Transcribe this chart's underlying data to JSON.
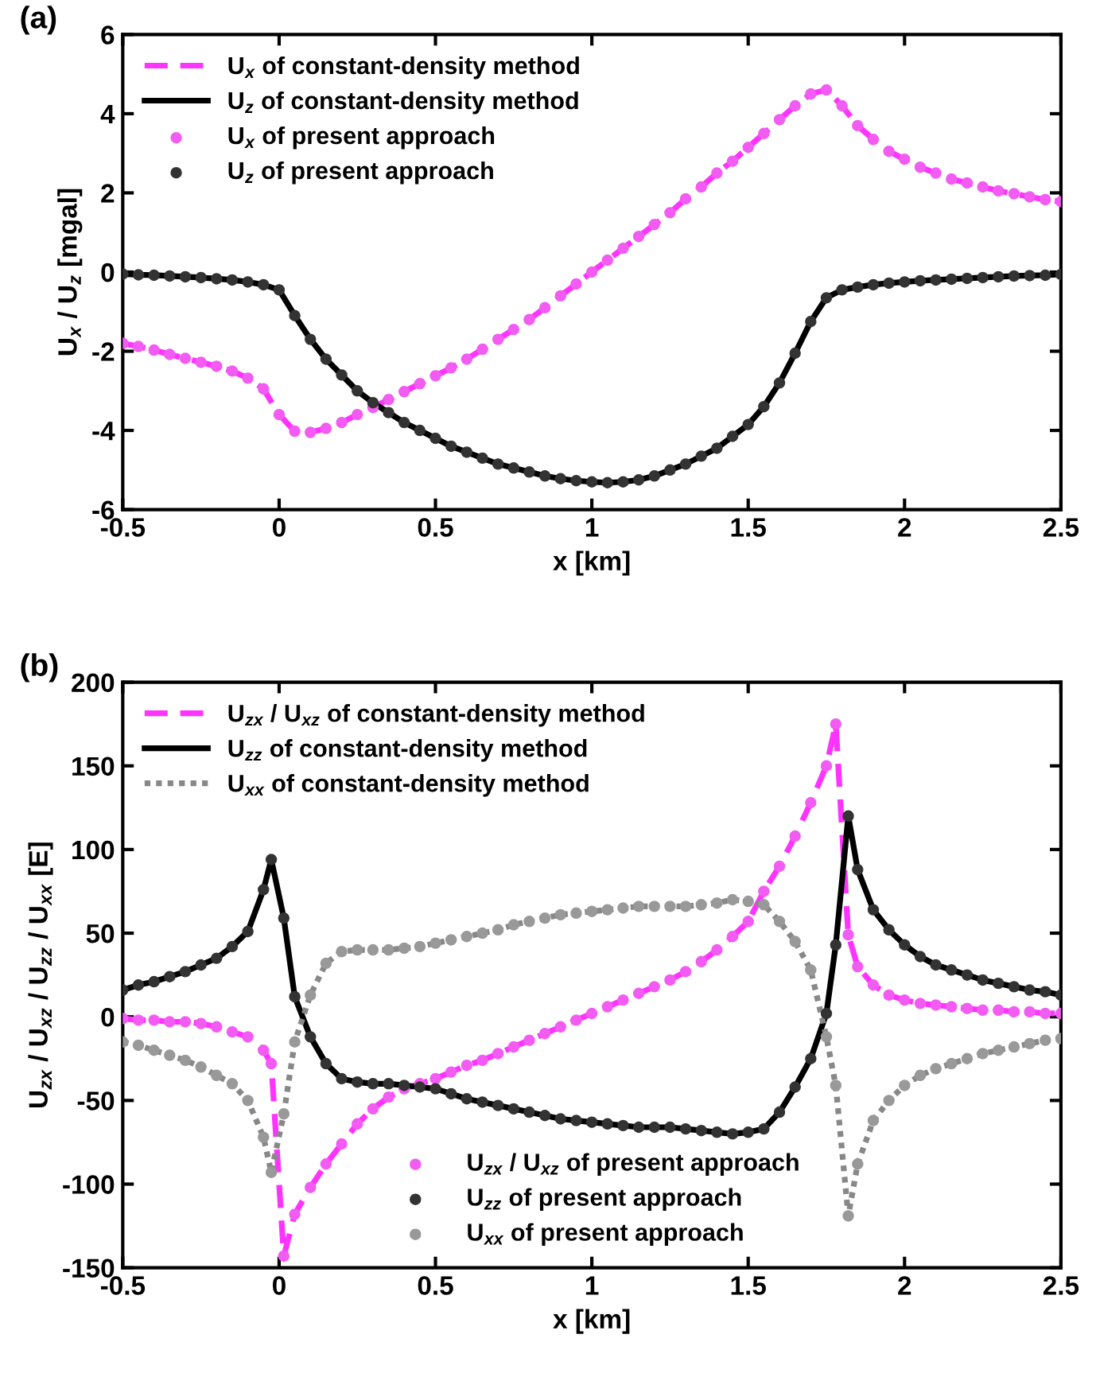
{
  "chart_data": [
    {
      "type": "line",
      "title": "(a)",
      "xlabel": "x [km]",
      "ylabel": "U$_{x}$ / U$_{z}$ [mgal]",
      "x": [
        -0.5,
        -0.45,
        -0.4,
        -0.35,
        -0.3,
        -0.25,
        -0.2,
        -0.15,
        -0.1,
        -0.05,
        0,
        0.05,
        0.1,
        0.15,
        0.2,
        0.25,
        0.3,
        0.35,
        0.4,
        0.45,
        0.5,
        0.55,
        0.6,
        0.65,
        0.7,
        0.75,
        0.8,
        0.85,
        0.9,
        0.95,
        1.0,
        1.05,
        1.1,
        1.15,
        1.2,
        1.25,
        1.3,
        1.35,
        1.4,
        1.45,
        1.5,
        1.55,
        1.6,
        1.65,
        1.7,
        1.75,
        1.8,
        1.85,
        1.9,
        1.95,
        2.0,
        2.05,
        2.1,
        2.15,
        2.2,
        2.25,
        2.3,
        2.35,
        2.4,
        2.45,
        2.5
      ],
      "xlim": [
        -0.5,
        2.5
      ],
      "xticks": [
        -0.5,
        0,
        0.5,
        1,
        1.5,
        2,
        2.5
      ],
      "ylim": [
        -6,
        6
      ],
      "yticks": [
        -6,
        -4,
        -2,
        0,
        2,
        4,
        6
      ],
      "legend": "top left",
      "series": [
        {
          "name": "U$_{x}$ of constant-density method",
          "type": "line",
          "line_style": "dashed",
          "color": "#ff33ff",
          "values": [
            -1.8,
            -1.88,
            -1.97,
            -2.08,
            -2.18,
            -2.28,
            -2.38,
            -2.5,
            -2.68,
            -2.95,
            -3.6,
            -4.02,
            -4.05,
            -3.95,
            -3.8,
            -3.6,
            -3.42,
            -3.22,
            -3.02,
            -2.82,
            -2.62,
            -2.42,
            -2.2,
            -1.95,
            -1.7,
            -1.45,
            -1.2,
            -0.9,
            -0.6,
            -0.3,
            0.0,
            0.3,
            0.6,
            0.9,
            1.2,
            1.5,
            1.85,
            2.15,
            2.5,
            2.8,
            3.15,
            3.5,
            3.85,
            4.2,
            4.5,
            4.6,
            4.2,
            3.7,
            3.35,
            3.05,
            2.85,
            2.65,
            2.5,
            2.35,
            2.25,
            2.15,
            2.05,
            1.98,
            1.9,
            1.83,
            1.78
          ]
        },
        {
          "name": "U$_{z}$ of constant-density method",
          "type": "line",
          "line_style": "solid",
          "color": "#000000",
          "values": [
            -0.05,
            -0.07,
            -0.08,
            -0.1,
            -0.12,
            -0.14,
            -0.17,
            -0.2,
            -0.25,
            -0.32,
            -0.45,
            -1.1,
            -1.7,
            -2.2,
            -2.6,
            -3.0,
            -3.3,
            -3.55,
            -3.8,
            -4.0,
            -4.2,
            -4.4,
            -4.55,
            -4.7,
            -4.85,
            -4.95,
            -5.05,
            -5.15,
            -5.22,
            -5.27,
            -5.3,
            -5.32,
            -5.3,
            -5.25,
            -5.15,
            -5.0,
            -4.85,
            -4.65,
            -4.45,
            -4.15,
            -3.85,
            -3.4,
            -2.8,
            -2.05,
            -1.25,
            -0.65,
            -0.45,
            -0.38,
            -0.32,
            -0.28,
            -0.25,
            -0.22,
            -0.2,
            -0.18,
            -0.16,
            -0.14,
            -0.12,
            -0.1,
            -0.09,
            -0.08,
            -0.06
          ]
        },
        {
          "name": "U$_{x}$ of present approach",
          "type": "scatter",
          "marker": "circle",
          "color": "#f25cf2",
          "values": [
            -1.8,
            -1.88,
            -1.97,
            -2.08,
            -2.18,
            -2.28,
            -2.38,
            -2.5,
            -2.68,
            -2.95,
            -3.6,
            -4.02,
            -4.05,
            -3.95,
            -3.8,
            -3.6,
            -3.42,
            -3.22,
            -3.02,
            -2.82,
            -2.62,
            -2.42,
            -2.2,
            -1.95,
            -1.7,
            -1.45,
            -1.2,
            -0.9,
            -0.6,
            -0.3,
            0.0,
            0.3,
            0.6,
            0.9,
            1.2,
            1.5,
            1.85,
            2.15,
            2.5,
            2.8,
            3.15,
            3.5,
            3.85,
            4.2,
            4.5,
            4.6,
            4.2,
            3.7,
            3.35,
            3.05,
            2.85,
            2.65,
            2.5,
            2.35,
            2.25,
            2.15,
            2.05,
            1.98,
            1.9,
            1.83,
            1.78
          ]
        },
        {
          "name": "U$_{z}$ of present approach",
          "type": "scatter",
          "marker": "circle",
          "color": "#333333",
          "values": [
            -0.05,
            -0.07,
            -0.08,
            -0.1,
            -0.12,
            -0.14,
            -0.17,
            -0.2,
            -0.25,
            -0.32,
            -0.45,
            -1.1,
            -1.7,
            -2.2,
            -2.6,
            -3.0,
            -3.3,
            -3.55,
            -3.8,
            -4.0,
            -4.2,
            -4.4,
            -4.55,
            -4.7,
            -4.85,
            -4.95,
            -5.05,
            -5.15,
            -5.22,
            -5.27,
            -5.3,
            -5.32,
            -5.3,
            -5.25,
            -5.15,
            -5.0,
            -4.85,
            -4.65,
            -4.45,
            -4.15,
            -3.85,
            -3.4,
            -2.8,
            -2.05,
            -1.25,
            -0.65,
            -0.45,
            -0.38,
            -0.32,
            -0.28,
            -0.25,
            -0.22,
            -0.2,
            -0.18,
            -0.16,
            -0.14,
            -0.12,
            -0.1,
            -0.09,
            -0.08,
            -0.06
          ]
        }
      ]
    },
    {
      "type": "line",
      "title": "(b)",
      "xlabel": "x [km]",
      "ylabel": "U$_{zx}$ / U$_{xz}$ / U$_{zz}$ / U$_{xx}$ [E]",
      "x": [
        -0.5,
        -0.45,
        -0.4,
        -0.35,
        -0.3,
        -0.25,
        -0.2,
        -0.15,
        -0.1,
        -0.05,
        -0.025,
        0.015,
        0.05,
        0.1,
        0.15,
        0.2,
        0.25,
        0.3,
        0.35,
        0.4,
        0.45,
        0.5,
        0.55,
        0.6,
        0.65,
        0.7,
        0.75,
        0.8,
        0.85,
        0.9,
        0.95,
        1.0,
        1.05,
        1.1,
        1.15,
        1.2,
        1.25,
        1.3,
        1.35,
        1.4,
        1.45,
        1.5,
        1.55,
        1.6,
        1.65,
        1.7,
        1.75,
        1.78,
        1.82,
        1.85,
        1.9,
        1.95,
        2.0,
        2.05,
        2.1,
        2.15,
        2.2,
        2.25,
        2.3,
        2.35,
        2.4,
        2.45,
        2.5
      ],
      "xlim": [
        -0.5,
        2.5
      ],
      "xticks": [
        -0.5,
        0,
        0.5,
        1,
        1.5,
        2,
        2.5
      ],
      "ylim": [
        -150,
        200
      ],
      "yticks": [
        -150,
        -100,
        -50,
        0,
        50,
        100,
        150,
        200
      ],
      "legend": [
        "top left",
        "bottom center"
      ],
      "series": [
        {
          "name": "U$_{zx}$ / U$_{xz}$ of constant-density method",
          "type": "line",
          "line_style": "dashed",
          "color": "#ff33ff",
          "values": [
            -1,
            -2,
            -2,
            -3,
            -3,
            -4,
            -6,
            -9,
            -12,
            -20,
            -28,
            -143,
            -118,
            -102,
            -88,
            -76,
            -64,
            -55,
            -48,
            -43,
            -40,
            -37,
            -33,
            -29,
            -26,
            -22,
            -18,
            -14,
            -10,
            -6,
            -2,
            2,
            6,
            10,
            14,
            18,
            22,
            27,
            33,
            40,
            48,
            57,
            75,
            90,
            108,
            128,
            150,
            175,
            49,
            30,
            19,
            13,
            10,
            8,
            7,
            6,
            5,
            4,
            4,
            3,
            3,
            2,
            2
          ]
        },
        {
          "name": "U$_{zz}$ of constant-density method",
          "type": "line",
          "line_style": "solid",
          "color": "#000000",
          "values": [
            16,
            19,
            21,
            24,
            27,
            31,
            35,
            42,
            51,
            76,
            94,
            59,
            12,
            -12,
            -28,
            -37,
            -39,
            -40,
            -40,
            -41,
            -42,
            -43,
            -46,
            -49,
            -51,
            -53,
            -55,
            -57,
            -59,
            -61,
            -62,
            -63,
            -64,
            -65,
            -66,
            -66,
            -66,
            -67,
            -68,
            -69,
            -70,
            -69,
            -67,
            -57,
            -42,
            -25,
            2,
            43,
            120,
            88,
            64,
            52,
            43,
            36,
            31,
            28,
            25,
            22,
            20,
            18,
            16,
            15,
            13
          ]
        },
        {
          "name": "U$_{xx}$ of constant-density method",
          "type": "line",
          "line_style": "dotted",
          "color": "#888888",
          "values": [
            -15,
            -17,
            -20,
            -23,
            -26,
            -30,
            -35,
            -40,
            -50,
            -72,
            -93,
            -58,
            -15,
            13,
            32,
            39,
            40,
            40,
            40,
            41,
            42,
            44,
            46,
            48,
            50,
            52,
            55,
            57,
            59,
            61,
            62,
            63,
            64,
            65,
            66,
            66,
            66,
            66,
            67,
            68,
            70,
            69,
            67,
            57,
            45,
            28,
            -12,
            -41,
            -119,
            -88,
            -62,
            -50,
            -41,
            -35,
            -31,
            -28,
            -25,
            -22,
            -20,
            -18,
            -16,
            -14,
            -13
          ]
        },
        {
          "name": "U$_{zx}$ / U$_{xz}$ of present approach",
          "type": "scatter",
          "marker": "circle",
          "color": "#f25cf2",
          "values": [
            -1,
            -2,
            -2,
            -3,
            -3,
            -4,
            -6,
            -9,
            -12,
            -20,
            -28,
            -143,
            -118,
            -102,
            -88,
            -76,
            -64,
            -55,
            -48,
            -43,
            -40,
            -37,
            -33,
            -29,
            -26,
            -22,
            -18,
            -14,
            -10,
            -6,
            -2,
            2,
            6,
            10,
            14,
            18,
            22,
            27,
            33,
            40,
            48,
            57,
            75,
            90,
            108,
            128,
            150,
            175,
            49,
            30,
            19,
            13,
            10,
            8,
            7,
            6,
            5,
            4,
            4,
            3,
            3,
            2,
            2
          ]
        },
        {
          "name": "U$_{zz}$ of present approach",
          "type": "scatter",
          "marker": "circle",
          "color": "#333333",
          "values": [
            16,
            19,
            21,
            24,
            27,
            31,
            35,
            42,
            51,
            76,
            94,
            59,
            12,
            -12,
            -28,
            -37,
            -39,
            -40,
            -40,
            -41,
            -42,
            -43,
            -46,
            -49,
            -51,
            -53,
            -55,
            -57,
            -59,
            -61,
            -62,
            -63,
            -64,
            -65,
            -66,
            -66,
            -66,
            -67,
            -68,
            -69,
            -70,
            -69,
            -67,
            -57,
            -42,
            -25,
            2,
            43,
            120,
            88,
            64,
            52,
            43,
            36,
            31,
            28,
            25,
            22,
            20,
            18,
            16,
            15,
            13
          ]
        },
        {
          "name": "U$_{xx}$ of present approach",
          "type": "scatter",
          "marker": "circle",
          "color": "#999999",
          "values": [
            -15,
            -17,
            -20,
            -23,
            -26,
            -30,
            -35,
            -40,
            -50,
            -72,
            -93,
            -58,
            -15,
            13,
            32,
            39,
            40,
            40,
            40,
            41,
            42,
            44,
            46,
            48,
            50,
            52,
            55,
            57,
            59,
            61,
            62,
            63,
            64,
            65,
            66,
            66,
            66,
            66,
            67,
            68,
            70,
            69,
            67,
            57,
            45,
            28,
            -12,
            -41,
            -119,
            -88,
            -62,
            -50,
            -41,
            -35,
            -31,
            -28,
            -25,
            -22,
            -20,
            -18,
            -16,
            -14,
            -13
          ]
        }
      ]
    }
  ]
}
